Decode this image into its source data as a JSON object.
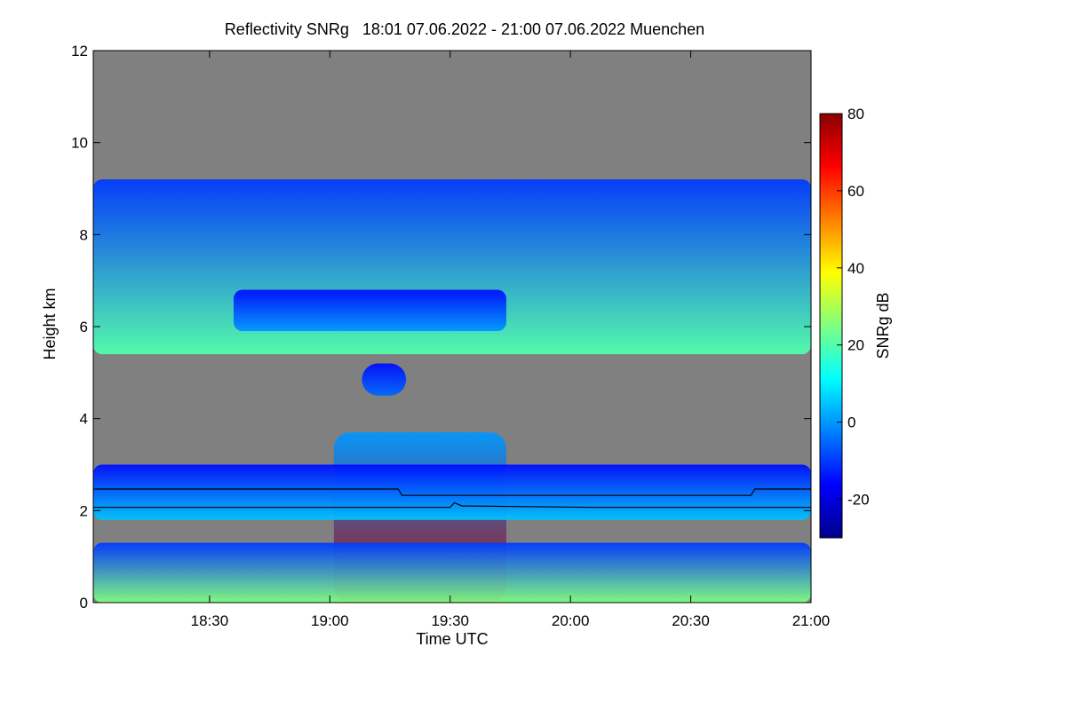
{
  "chart_data": {
    "type": "heatmap",
    "title": "Reflectivity SNRg   18:01 07.06.2022 - 21:00 07.06.2022 Muenchen",
    "xlabel": "Time UTC",
    "ylabel": "Height km",
    "xlim": [
      "18:01",
      "21:00"
    ],
    "ylim": [
      0,
      12
    ],
    "x_ticks": [
      "18:30",
      "19:00",
      "19:30",
      "20:00",
      "20:30",
      "21:00"
    ],
    "y_ticks": [
      0,
      2,
      4,
      6,
      8,
      10,
      12
    ],
    "grid": false,
    "colorbar": {
      "label": "SNRg dB",
      "range": [
        -30,
        80
      ],
      "ticks": [
        80,
        60,
        40,
        20,
        0,
        -20
      ],
      "colors": [
        "#00008b",
        "#0000ff",
        "#0080ff",
        "#00ffff",
        "#80ff80",
        "#ffff00",
        "#ff8000",
        "#ff0000",
        "#8b0000"
      ]
    },
    "background_color": "#808080",
    "features": [
      {
        "name": "upper cloud layer",
        "x_range": [
          "18:01",
          "21:00"
        ],
        "height_km": [
          5.4,
          9.2
        ],
        "snr_db": [
          -10,
          20
        ]
      },
      {
        "name": "mid-level cloud fragments",
        "x_range": [
          "18:36",
          "19:44"
        ],
        "height_km": [
          5.9,
          6.8
        ],
        "snr_db": [
          -15,
          0
        ]
      },
      {
        "name": "small cloud patch",
        "x_range": [
          "19:08",
          "19:19"
        ],
        "height_km": [
          4.5,
          5.2
        ],
        "snr_db": [
          -15,
          -5
        ]
      },
      {
        "name": "precipitation cell",
        "x_range": [
          "19:01",
          "19:44"
        ],
        "height_km": [
          0,
          3.7
        ],
        "snr_db": [
          0,
          75
        ]
      },
      {
        "name": "low cloud layer",
        "x_range": [
          "18:01",
          "21:00"
        ],
        "height_km": [
          1.8,
          3.0
        ],
        "snr_db": [
          -15,
          5
        ]
      },
      {
        "name": "surface clutter",
        "x_range": [
          "18:01",
          "21:00"
        ],
        "height_km": [
          0,
          1.3
        ],
        "snr_db": [
          -10,
          25
        ]
      }
    ],
    "overlay_lines": [
      {
        "color": "#000000",
        "points": [
          [
            "18:01",
            2.47
          ],
          [
            "18:51",
            2.47
          ],
          [
            "19:17",
            2.47
          ],
          [
            "19:18",
            2.33
          ],
          [
            "19:31",
            2.33
          ],
          [
            "20:45",
            2.33
          ],
          [
            "20:46",
            2.47
          ],
          [
            "21:00",
            2.47
          ]
        ]
      },
      {
        "color": "#000000",
        "points": [
          [
            "18:01",
            2.07
          ],
          [
            "19:30",
            2.07
          ],
          [
            "19:31",
            2.17
          ],
          [
            "19:33",
            2.1
          ],
          [
            "19:35",
            2.1
          ],
          [
            "20:06",
            2.07
          ],
          [
            "21:00",
            2.07
          ]
        ]
      }
    ]
  }
}
